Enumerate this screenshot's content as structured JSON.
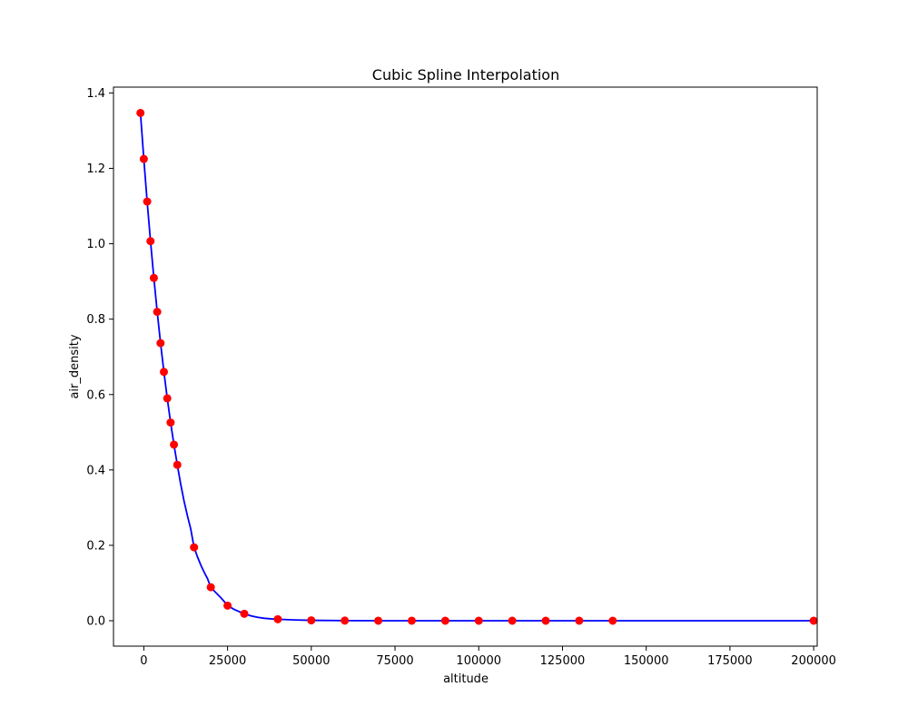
{
  "chart_data": {
    "type": "scatter",
    "title": "Cubic Spline Interpolation",
    "xlabel": "altitude",
    "ylabel": "air_density",
    "xlim": [
      -9050,
      201050
    ],
    "ylim": [
      -0.0674,
      1.4155
    ],
    "xticks": [
      0,
      25000,
      50000,
      75000,
      100000,
      125000,
      150000,
      175000,
      200000
    ],
    "xtick_labels": [
      "0",
      "25000",
      "50000",
      "75000",
      "100000",
      "125000",
      "150000",
      "175000",
      "200000"
    ],
    "yticks": [
      0.0,
      0.2,
      0.4,
      0.6,
      0.8,
      1.0,
      1.2,
      1.4
    ],
    "ytick_labels": [
      "0.0",
      "0.2",
      "0.4",
      "0.6",
      "0.8",
      "1.0",
      "1.2",
      "1.4"
    ],
    "grid": false,
    "series": [
      {
        "kind": "points",
        "color": "#ff0000",
        "x": [
          -1000,
          0,
          1000,
          2000,
          3000,
          4000,
          5000,
          6000,
          7000,
          8000,
          9000,
          10000,
          15000,
          20000,
          25000,
          30000,
          40000,
          50000,
          60000,
          70000,
          80000,
          90000,
          100000,
          110000,
          120000,
          130000,
          140000,
          200000
        ],
        "y": [
          1.347,
          1.225,
          1.112,
          1.007,
          0.9093,
          0.8194,
          0.7364,
          0.6601,
          0.59,
          0.5258,
          0.4671,
          0.4135,
          0.1948,
          0.08891,
          0.04008,
          0.01841,
          0.003996,
          0.001027,
          0.0003097,
          8.283e-05,
          1.846e-05,
          3.4e-06,
          5e-07,
          7e-08,
          2e-08,
          0.0,
          0.0,
          0.0
        ]
      },
      {
        "kind": "curve",
        "color": "#0000ff",
        "x": [
          -1000,
          0,
          1000,
          2000,
          3000,
          4000,
          5000,
          6000,
          7000,
          8000,
          9000,
          10000,
          11000,
          12000,
          13000,
          14000,
          15000,
          16000,
          17000,
          18000,
          19000,
          20000,
          21000,
          22000,
          23000,
          24000,
          25000,
          26000,
          27000,
          28000,
          29000,
          30000,
          32000,
          34000,
          36000,
          38000,
          40000,
          45000,
          50000,
          60000,
          70000,
          80000,
          90000,
          100000,
          110000,
          120000,
          130000,
          140000,
          160000,
          180000,
          200000
        ],
        "y": [
          1.347,
          1.225,
          1.112,
          1.007,
          0.9093,
          0.8194,
          0.7364,
          0.6601,
          0.59,
          0.5258,
          0.4671,
          0.4135,
          0.363,
          0.318,
          0.279,
          0.244,
          0.1948,
          0.17,
          0.148,
          0.129,
          0.112,
          0.08891,
          0.079,
          0.07,
          0.061,
          0.051,
          0.04008,
          0.035,
          0.03,
          0.026,
          0.022,
          0.01841,
          0.013,
          0.009,
          0.0065,
          0.005,
          0.003996,
          0.0022,
          0.001027,
          0.0003097,
          8.283e-05,
          1.846e-05,
          3.4e-06,
          5e-07,
          7e-08,
          2e-08,
          0.0,
          0.0,
          0.0,
          0.0,
          0.0
        ]
      }
    ]
  }
}
